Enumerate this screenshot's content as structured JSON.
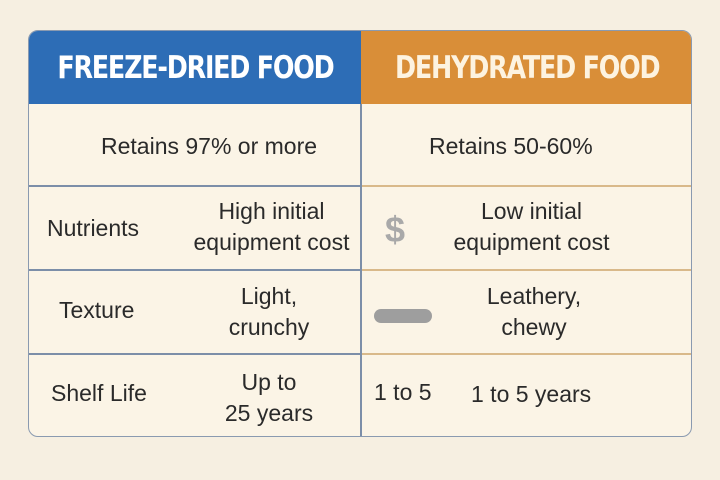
{
  "header": {
    "left": "FREEZE-DRIED FOOD",
    "right": "DEHYDRATED FOOD"
  },
  "rows": [
    {
      "label": "",
      "freeze": "Retains 97% or more",
      "dehydrated": "Retains 50-60%"
    },
    {
      "label": "Nutrients",
      "freeze_l1": "High initial",
      "freeze_l2": "equipment cost",
      "dehydrated_l1": "Low initial",
      "dehydrated_l2": "equipment cost",
      "icon": "dollar-icon",
      "icon_text": "$"
    },
    {
      "label": "Texture",
      "freeze_l1": "Light,",
      "freeze_l2": "crunchy",
      "dehydrated_l1": "Leathery,",
      "dehydrated_l2": "chewy",
      "icon": "jerky-icon"
    },
    {
      "label": "Shelf Life",
      "freeze_l1": "Up to",
      "freeze_l2": "25 years",
      "dehydrated_extra": "1 to 5",
      "dehydrated": "1 to 5 years"
    }
  ],
  "colors": {
    "blue": "#2d6db6",
    "orange": "#d98e38",
    "background": "#fbf4e6"
  }
}
